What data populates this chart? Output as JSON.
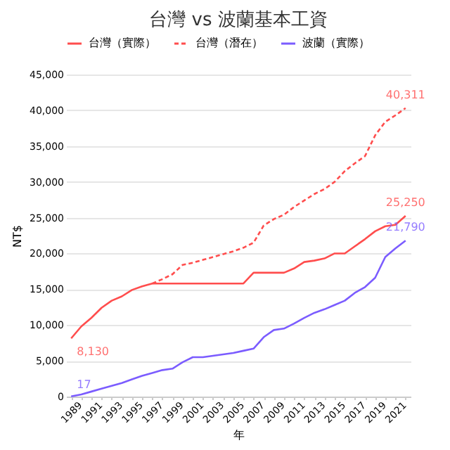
{
  "chart_data": {
    "type": "line",
    "title": "台灣 vs 波蘭基本工資",
    "xlabel": "年",
    "ylabel": "NT$",
    "categories": [
      "1989",
      null,
      "1991",
      null,
      "1993",
      null,
      "1995",
      null,
      "1997",
      null,
      "1999",
      null,
      "2001",
      null,
      "2003",
      null,
      "2005",
      null,
      "2007",
      null,
      "2009",
      null,
      "2011",
      null,
      "2013",
      null,
      "2015",
      null,
      "2017",
      null,
      "2019",
      null,
      "2021",
      null
    ],
    "series": [
      {
        "name": "台灣（實際）",
        "color": "#ff4d4d",
        "line_style": "solid",
        "values": [
          8130,
          9800,
          11000,
          12400,
          13400,
          14000,
          14900,
          15400,
          15800,
          15800,
          15800,
          15800,
          15800,
          15800,
          15800,
          15800,
          15800,
          15800,
          17300,
          17300,
          17300,
          17300,
          17900,
          18800,
          19000,
          19300,
          20000,
          20000,
          21000,
          22000,
          23100,
          23800,
          24000,
          25250
        ],
        "value_labels": [
          "8,130",
          null,
          null,
          null,
          null,
          null,
          null,
          null,
          null,
          null,
          null,
          null,
          null,
          null,
          null,
          null,
          null,
          null,
          null,
          null,
          null,
          null,
          null,
          null,
          null,
          null,
          null,
          null,
          null,
          null,
          null,
          null,
          null,
          "25,250"
        ]
      },
      {
        "name": "台灣（潛在）",
        "color": "#ff4d4d",
        "line_style": "dashed",
        "values": [
          null,
          null,
          null,
          null,
          null,
          null,
          null,
          null,
          15800,
          16400,
          17100,
          18400,
          18700,
          19100,
          19500,
          19900,
          20300,
          20800,
          21500,
          23900,
          24800,
          25400,
          26500,
          27400,
          28300,
          29000,
          30000,
          31500,
          32600,
          33600,
          36500,
          38400,
          39300,
          40311
        ],
        "value_labels": [
          null,
          null,
          null,
          null,
          null,
          null,
          null,
          null,
          null,
          null,
          null,
          null,
          null,
          null,
          null,
          null,
          null,
          null,
          null,
          null,
          null,
          null,
          null,
          null,
          null,
          null,
          null,
          null,
          null,
          null,
          null,
          null,
          null,
          "40,311"
        ]
      },
      {
        "name": "波蘭（實際）",
        "color": "#7b5cff",
        "line_style": "solid",
        "values": [
          17,
          300,
          700,
          1100,
          1500,
          1900,
          2400,
          2900,
          3300,
          3700,
          3900,
          4800,
          5500,
          5500,
          5700,
          5900,
          6100,
          6400,
          6700,
          8300,
          9300,
          9500,
          10200,
          11000,
          11700,
          12200,
          12800,
          13400,
          14500,
          15300,
          16600,
          19500,
          20700,
          21790
        ],
        "value_labels": [
          "17",
          null,
          null,
          null,
          null,
          null,
          null,
          null,
          null,
          null,
          null,
          null,
          null,
          null,
          null,
          null,
          null,
          null,
          null,
          null,
          null,
          null,
          null,
          null,
          null,
          null,
          null,
          null,
          null,
          null,
          null,
          null,
          null,
          "21,790"
        ]
      }
    ],
    "ylim": [
      0,
      45000
    ],
    "yticks": [
      0,
      {
        "value": 5000,
        "label": "5,000"
      },
      {
        "value": 10000,
        "label": "10,000"
      },
      {
        "value": 15000,
        "label": "15,000"
      },
      {
        "value": 20000,
        "label": "20,000"
      },
      {
        "value": 25000,
        "label": "25,000"
      },
      {
        "value": 30000,
        "label": "30,000"
      },
      {
        "value": 35000,
        "label": "35,000"
      },
      {
        "value": 40000,
        "label": "40,000"
      },
      {
        "value": 45000,
        "label": "45,000"
      }
    ],
    "grid": "y",
    "legend": "top"
  }
}
